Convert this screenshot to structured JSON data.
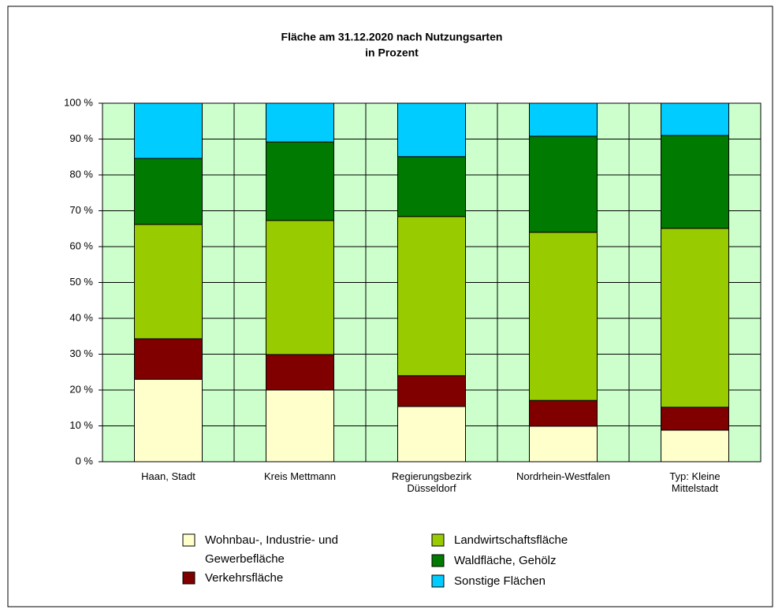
{
  "chart_data": {
    "type": "stacked_bar",
    "title": "Fläche am 31.12.2020 nach Nutzungsarten",
    "subtitle": "in Prozent",
    "categories": [
      "Haan, Stadt",
      "Kreis Mettmann",
      "Regierungsbezirk\nDüsseldorf",
      "Nordrhein-Westfalen",
      "Typ: Kleine\nMittelstadt"
    ],
    "series": [
      {
        "name": "Wohnbau-, Industrie- und\nGewerbefläche",
        "color": "#ffffcc",
        "values": [
          23,
          20,
          15.4,
          9.9,
          8.8
        ]
      },
      {
        "name": "Verkehrsfläche",
        "color": "#800000",
        "values": [
          11.3,
          9.9,
          8.6,
          7.2,
          6.4
        ]
      },
      {
        "name": "Landwirtschaftsfläche",
        "color": "#99cc00",
        "values": [
          31.9,
          37.4,
          44.4,
          46.9,
          49.9
        ]
      },
      {
        "name": "Waldfläche, Gehölz",
        "color": "#007a00",
        "values": [
          18.4,
          21.9,
          16.7,
          26.8,
          25.9
        ]
      },
      {
        "name": "Sonstige Flächen",
        "color": "#00ccff",
        "values": [
          15.4,
          10.8,
          14.9,
          9.2,
          9
        ]
      }
    ],
    "ylim": [
      0,
      100
    ],
    "yticks": [
      {
        "value": 0,
        "label": "0 %"
      },
      {
        "value": 10,
        "label": "10 %"
      },
      {
        "value": 20,
        "label": "20 %"
      },
      {
        "value": 30,
        "label": "30 %"
      },
      {
        "value": 40,
        "label": "40 %"
      },
      {
        "value": 50,
        "label": "50 %"
      },
      {
        "value": 60,
        "label": "60 %"
      },
      {
        "value": 70,
        "label": "70 %"
      },
      {
        "value": 80,
        "label": "80 %"
      },
      {
        "value": 90,
        "label": "90 %"
      },
      {
        "value": 100,
        "label": "100 %"
      }
    ],
    "grid": true,
    "plot_background": "#ccffcc"
  }
}
